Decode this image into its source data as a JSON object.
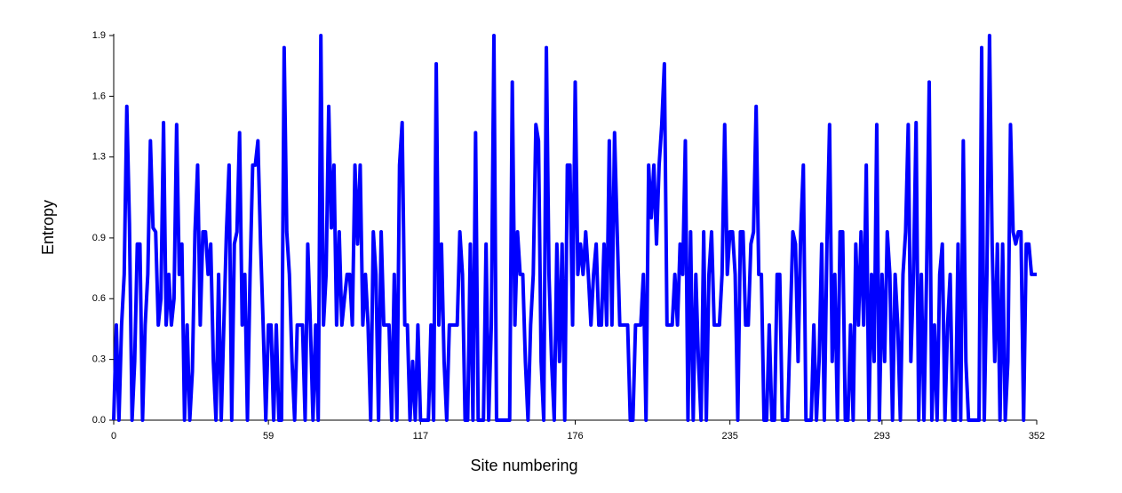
{
  "chart_data": {
    "type": "line",
    "xlabel": "Site numbering",
    "ylabel": "Entropy",
    "color": "#0000ff",
    "grid": false,
    "x": [
      0,
      1,
      2,
      3,
      4,
      5,
      6,
      7,
      8,
      9,
      10,
      11,
      12,
      13,
      14,
      15,
      16,
      17,
      18,
      19,
      20,
      21,
      22,
      23,
      24,
      25,
      26,
      27,
      28,
      29,
      30,
      31,
      32,
      33,
      34,
      35,
      36,
      37,
      38,
      39,
      40,
      41,
      42,
      43,
      44,
      45,
      46,
      47,
      48,
      49,
      50,
      51,
      52,
      53,
      54,
      55,
      56,
      57,
      58,
      59,
      60,
      61,
      62,
      63,
      64,
      65,
      66,
      67,
      68,
      69,
      70,
      71,
      72,
      73,
      74,
      75,
      76,
      77,
      78,
      79,
      80,
      81,
      82,
      83,
      84,
      85,
      86,
      87,
      88,
      89,
      90,
      91,
      92,
      93,
      94,
      95,
      96,
      97,
      98,
      99,
      100,
      101,
      102,
      103,
      104,
      105,
      106,
      107,
      108,
      109,
      110,
      111,
      112,
      113,
      114,
      115,
      116,
      117,
      118,
      119,
      120,
      121,
      122,
      123,
      124,
      125,
      126,
      127,
      128,
      129,
      130,
      131,
      132,
      133,
      134,
      135,
      136,
      137,
      138,
      139,
      140,
      141,
      142,
      143,
      144,
      145,
      146,
      147,
      148,
      149,
      150,
      151,
      152,
      153,
      154,
      155,
      156,
      157,
      158,
      159,
      160,
      161,
      162,
      163,
      164,
      165,
      166,
      167,
      168,
      169,
      170,
      171,
      172,
      173,
      174,
      175,
      176,
      177,
      178,
      179,
      180,
      181,
      182,
      183,
      184,
      185,
      186,
      187,
      188,
      189,
      190,
      191,
      192,
      193,
      194,
      195,
      196,
      197,
      198,
      199,
      200,
      201,
      202,
      203,
      204,
      205,
      206,
      207,
      208,
      209,
      210,
      211,
      212,
      213,
      214,
      215,
      216,
      217,
      218,
      219,
      220,
      221,
      222,
      223,
      224,
      225,
      226,
      227,
      228,
      229,
      230,
      231,
      232,
      233,
      234,
      235,
      236,
      237,
      238,
      239,
      240,
      241,
      242,
      243,
      244,
      245,
      246,
      247,
      248,
      249,
      250,
      251,
      252,
      253,
      254,
      255,
      256,
      257,
      258,
      259,
      260,
      261,
      262,
      263,
      264,
      265,
      266,
      267,
      268,
      269,
      270,
      271,
      272,
      273,
      274,
      275,
      276,
      277,
      278,
      279,
      280,
      281,
      282,
      283,
      284,
      285,
      286,
      287,
      288,
      289,
      290,
      291,
      292,
      293,
      294,
      295,
      296,
      297,
      298,
      299,
      300,
      301,
      302,
      303,
      304,
      305,
      306,
      307,
      308,
      309,
      310,
      311,
      312,
      313,
      314,
      315,
      316,
      317,
      318,
      319,
      320,
      321,
      322,
      323,
      324,
      325,
      326,
      327,
      328,
      329,
      330,
      331,
      332,
      333,
      334,
      335,
      336,
      337,
      338,
      339,
      340,
      341,
      342,
      343,
      344,
      345,
      346,
      347,
      348,
      349,
      350,
      351,
      352
    ],
    "values": [
      0,
      0.47,
      0,
      0.47,
      0.72,
      1.55,
      0.97,
      0,
      0.29,
      0.87,
      0.87,
      0,
      0.47,
      0.72,
      1.38,
      0.95,
      0.93,
      0.47,
      0.6,
      1.47,
      0.47,
      0.72,
      0.47,
      0.6,
      1.46,
      0.72,
      0.87,
      0,
      0.47,
      0,
      0.24,
      0.93,
      1.26,
      0.47,
      0.93,
      0.93,
      0.72,
      0.87,
      0.29,
      0,
      0.72,
      0,
      0.47,
      0.93,
      1.26,
      0,
      0.87,
      0.93,
      1.42,
      0.47,
      0.72,
      0,
      0.72,
      1.26,
      1.26,
      1.38,
      0.87,
      0.47,
      0,
      0.47,
      0.47,
      0,
      0.47,
      0,
      0,
      1.84,
      0.93,
      0.72,
      0.29,
      0,
      0.47,
      0.47,
      0.47,
      0,
      0.87,
      0.47,
      0,
      0.47,
      0,
      1.9,
      0.47,
      0.72,
      1.55,
      0.95,
      1.26,
      0.47,
      0.93,
      0.47,
      0.6,
      0.72,
      0.72,
      0.47,
      1.26,
      0.87,
      1.26,
      0.47,
      0.72,
      0.47,
      0,
      0.93,
      0.72,
      0,
      0.93,
      0.47,
      0.47,
      0.47,
      0,
      0.72,
      0,
      1.26,
      1.47,
      0.47,
      0.47,
      0,
      0.29,
      0,
      0.47,
      0,
      0,
      0,
      0,
      0.47,
      0,
      1.76,
      0.47,
      0.87,
      0.29,
      0,
      0.47,
      0.47,
      0.47,
      0.47,
      0.93,
      0.72,
      0,
      0,
      0.87,
      0,
      1.42,
      0,
      0,
      0,
      0.87,
      0,
      0.47,
      1.9,
      0,
      0,
      0,
      0,
      0,
      0,
      1.67,
      0.47,
      0.93,
      0.72,
      0.72,
      0.29,
      0,
      0.47,
      0.72,
      1.46,
      1.38,
      0.29,
      0,
      1.84,
      0.72,
      0.29,
      0,
      0.87,
      0.29,
      0.87,
      0,
      1.26,
      1.26,
      0.47,
      1.67,
      0.72,
      0.87,
      0.72,
      0.93,
      0.72,
      0.47,
      0.72,
      0.87,
      0.47,
      0.47,
      0.87,
      0.47,
      1.38,
      0.47,
      1.42,
      0.93,
      0.47,
      0.47,
      0.47,
      0.47,
      0,
      0,
      0.47,
      0.47,
      0.47,
      0.72,
      0,
      1.26,
      1.0,
      1.26,
      0.87,
      1.26,
      1.46,
      1.76,
      0.47,
      0.47,
      0.47,
      0.72,
      0.47,
      0.87,
      0.72,
      1.38,
      0,
      0.93,
      0,
      0.72,
      0.29,
      0,
      0.93,
      0,
      0.72,
      0.93,
      0.47,
      0.47,
      0.47,
      0.72,
      1.46,
      0.72,
      0.93,
      0.93,
      0.72,
      0,
      0.93,
      0.93,
      0.47,
      0.47,
      0.87,
      0.93,
      1.55,
      0.72,
      0.72,
      0,
      0,
      0.47,
      0,
      0,
      0.72,
      0.72,
      0,
      0,
      0,
      0.47,
      0.93,
      0.87,
      0.29,
      0.93,
      1.26,
      0,
      0,
      0,
      0.47,
      0,
      0.29,
      0.87,
      0,
      0.87,
      1.46,
      0.29,
      0.72,
      0,
      0.93,
      0.93,
      0,
      0,
      0.47,
      0,
      0.87,
      0.47,
      0.93,
      0.47,
      1.26,
      0,
      0.72,
      0.29,
      1.46,
      0,
      0.72,
      0.29,
      0.93,
      0.72,
      0,
      0.72,
      0.47,
      0,
      0.72,
      0.93,
      1.46,
      0.29,
      0.72,
      1.47,
      0,
      0.72,
      0,
      0.72,
      1.67,
      0,
      0.47,
      0,
      0.72,
      0.87,
      0,
      0.47,
      0.72,
      0,
      0,
      0.87,
      0,
      1.38,
      0.29,
      0,
      0,
      0,
      0,
      0,
      1.84,
      0,
      0.72,
      1.9,
      0.87,
      0.29,
      0.87,
      0,
      0.87,
      0,
      0.29,
      1.46,
      0.93,
      0.87,
      0.93,
      0.93,
      0,
      0.87,
      0.87,
      0.72,
      0.72,
      0.72
    ],
    "xlim": [
      0,
      352
    ],
    "xticks": [
      0,
      59,
      117,
      176,
      235,
      293,
      352
    ],
    "ylim": [
      0,
      1.9
    ],
    "yticks": [
      {
        "value": 0,
        "label": "0.0"
      },
      0.3,
      0.6,
      0.9,
      1.3,
      1.6,
      1.9
    ]
  }
}
